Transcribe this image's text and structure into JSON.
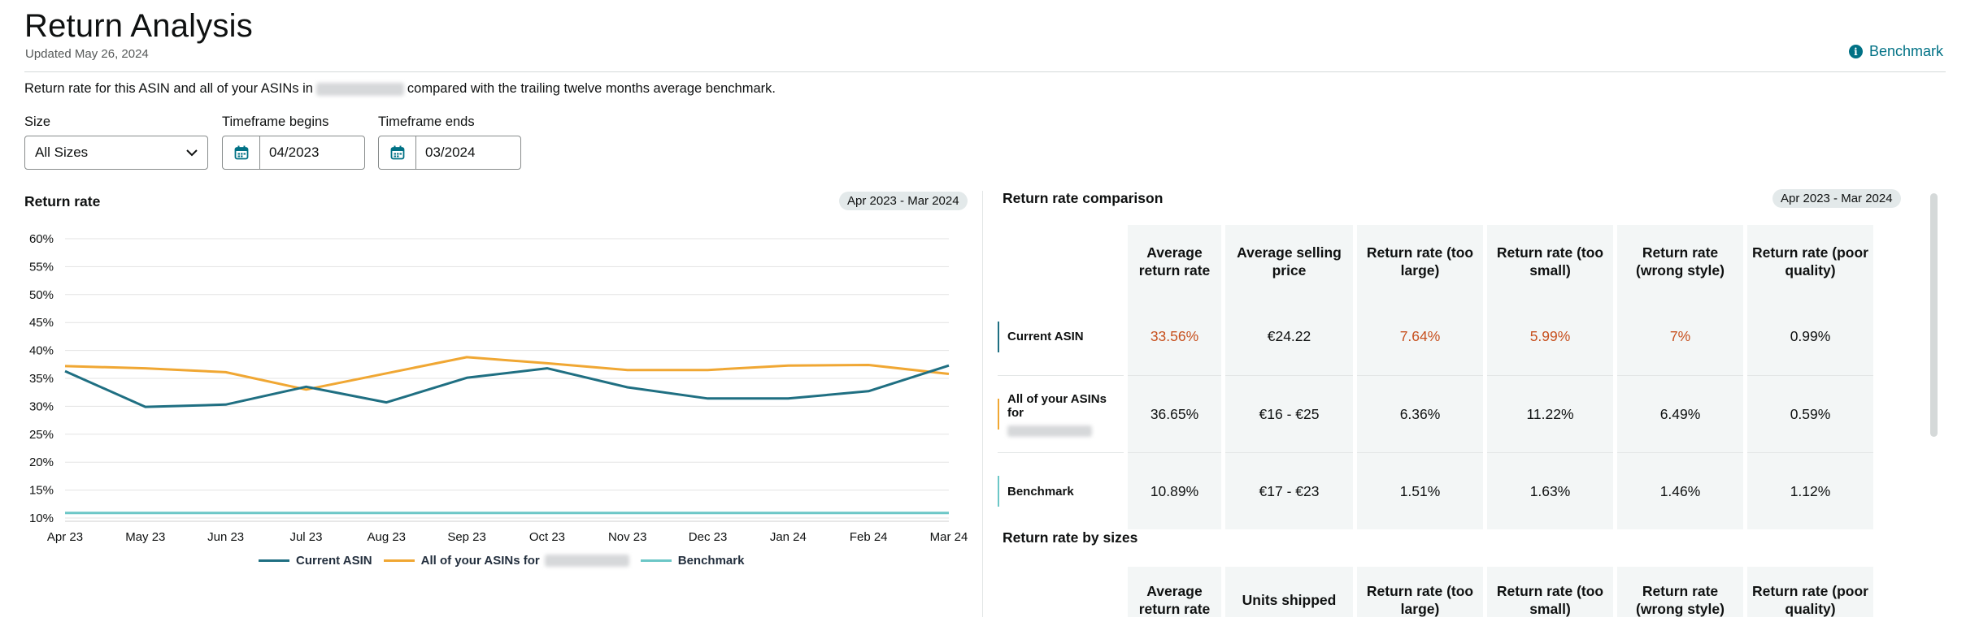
{
  "header": {
    "title": "Return Analysis",
    "updated": "Updated May 26, 2024",
    "benchmark_link": "Benchmark"
  },
  "description": {
    "before": "Return rate for this ASIN and all of your ASINs in",
    "after": "compared with the trailing twelve months average benchmark."
  },
  "filters": {
    "size_label": "Size",
    "size_value": "All Sizes",
    "begin_label": "Timeframe begins",
    "begin_value": "04/2023",
    "end_label": "Timeframe ends",
    "end_value": "03/2024"
  },
  "colors": {
    "current_asin": "#1f6f82",
    "all_asins": "#f0a733",
    "benchmark": "#6cc7c7",
    "warning": "#c7511f"
  },
  "return_rate_chart": {
    "title": "Return rate",
    "range": "Apr 2023 - Mar 2024"
  },
  "chart_data": {
    "type": "line",
    "title": "Return rate",
    "categories": [
      "Apr 23",
      "May 23",
      "Jun 23",
      "Jul 23",
      "Aug 23",
      "Sep 23",
      "Oct 23",
      "Nov 23",
      "Dec 23",
      "Jan 24",
      "Feb 24",
      "Mar 24"
    ],
    "y_ticks": [
      "10%",
      "15%",
      "20%",
      "25%",
      "30%",
      "35%",
      "40%",
      "45%",
      "50%",
      "55%",
      "60%"
    ],
    "ylim": [
      10,
      60
    ],
    "grid": true,
    "legend_position": "bottom",
    "series": [
      {
        "name": "Current ASIN",
        "color": "#1f6f82",
        "values": [
          36.3,
          29.9,
          30.3,
          33.5,
          30.7,
          35.1,
          36.8,
          33.4,
          31.4,
          31.4,
          32.7,
          37.3
        ]
      },
      {
        "name": "All of your ASINs for",
        "color": "#f0a733",
        "values": [
          37.2,
          36.8,
          36.1,
          33.0,
          35.9,
          38.8,
          37.7,
          36.5,
          36.5,
          37.3,
          37.4,
          35.8
        ]
      },
      {
        "name": "Benchmark",
        "color": "#6cc7c7",
        "values": [
          10.9,
          10.9,
          10.9,
          10.9,
          10.9,
          10.9,
          10.9,
          10.9,
          10.9,
          10.9,
          10.9,
          10.9
        ]
      }
    ]
  },
  "comparison": {
    "title": "Return rate comparison",
    "range": "Apr 2023 - Mar 2024",
    "headers": [
      "Average return rate",
      "Average selling price",
      "Return rate (too large)",
      "Return rate (too small)",
      "Return rate (wrong style)",
      "Return rate (poor quality)"
    ],
    "rows": [
      {
        "label": "Current ASIN",
        "cells": [
          "33.56%",
          "€24.22",
          "7.64%",
          "5.99%",
          "7%",
          "0.99%"
        ]
      },
      {
        "label": "All of your ASINs for",
        "cells": [
          "36.65%",
          "€16 - €25",
          "6.36%",
          "11.22%",
          "6.49%",
          "0.59%"
        ]
      },
      {
        "label": "Benchmark",
        "cells": [
          "10.89%",
          "€17 - €23",
          "1.51%",
          "1.63%",
          "1.46%",
          "1.12%"
        ]
      }
    ]
  },
  "sizes": {
    "title": "Return rate by sizes",
    "headers": [
      "Average return rate",
      "Units shipped",
      "Return rate (too large)",
      "Return rate (too small)",
      "Return rate (wrong style)",
      "Return rate (poor quality)"
    ]
  }
}
